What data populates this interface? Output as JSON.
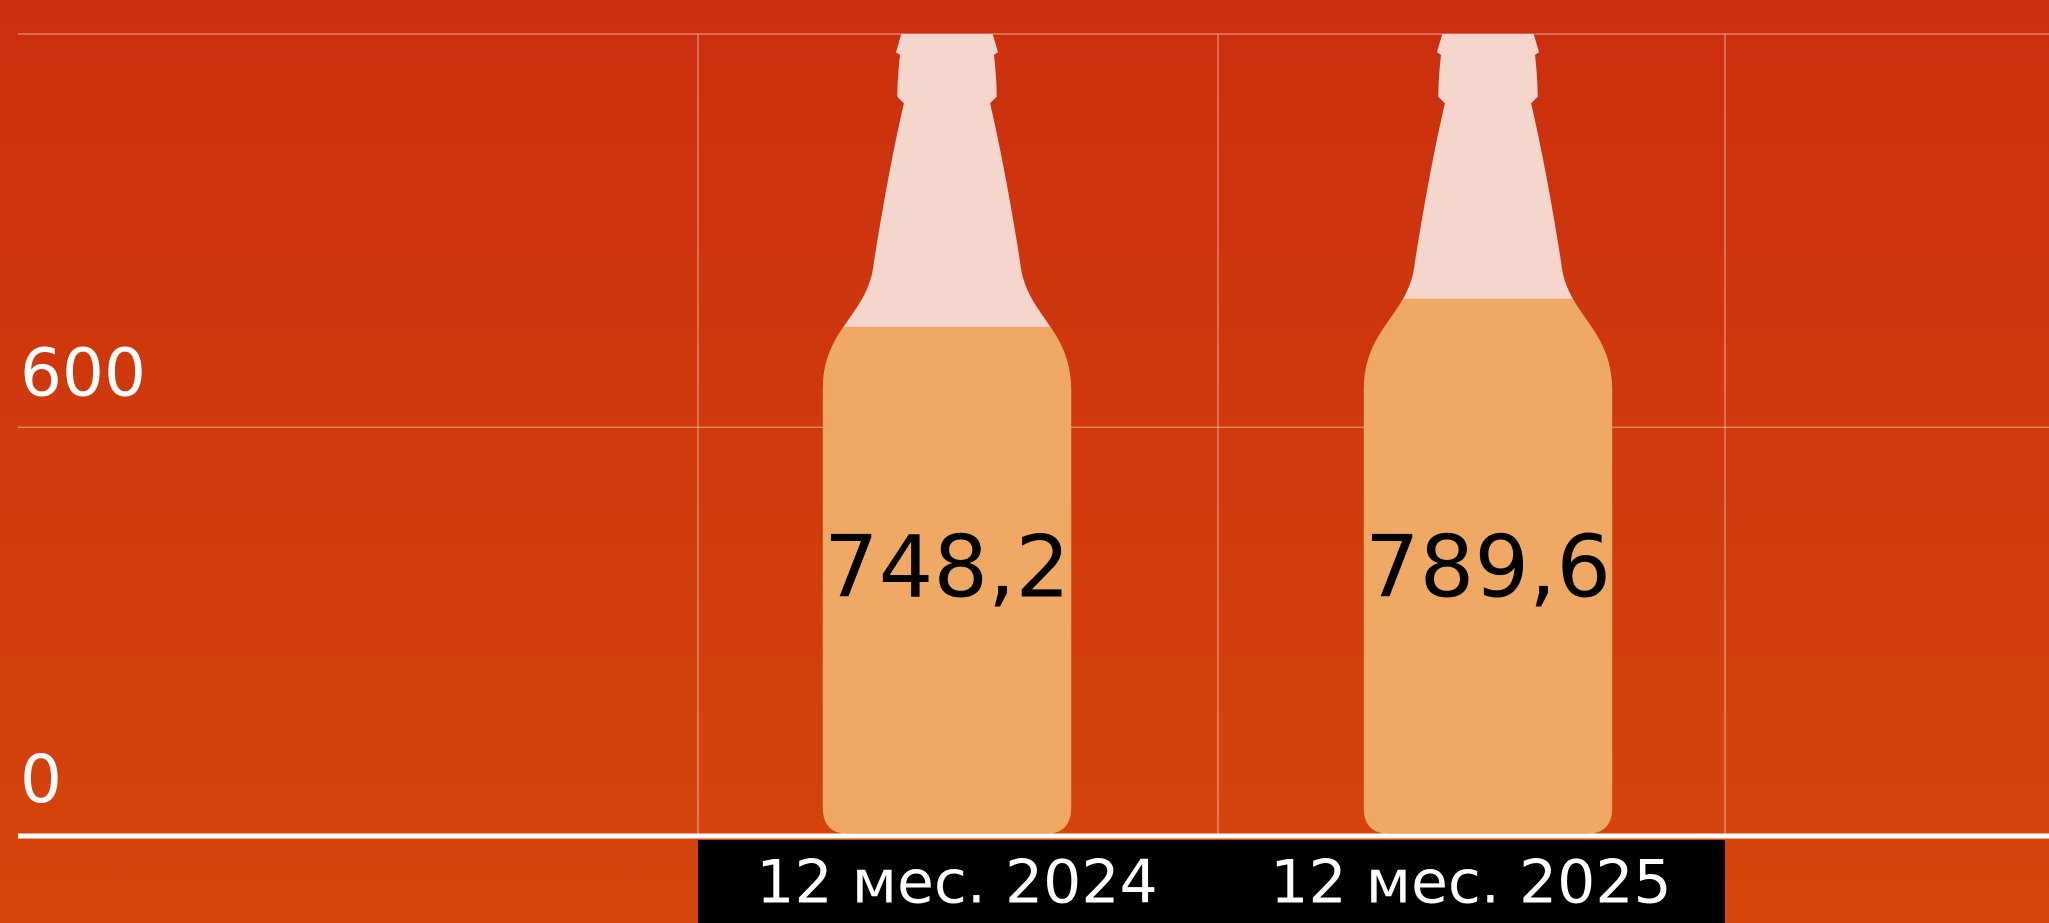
{
  "chart_data": {
    "type": "bar",
    "categories": [
      "12 мес. 2024",
      "12 мес. 2025"
    ],
    "values": [
      748.2,
      789.6
    ],
    "value_labels": [
      "748,2",
      "789,6"
    ],
    "color": "#f0a965",
    "ylim": [
      0,
      1180
    ],
    "yticks": [
      0,
      600
    ],
    "grid": true
  }
}
